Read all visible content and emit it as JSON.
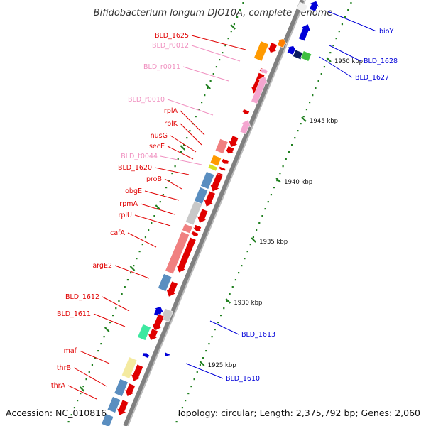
{
  "title": "Bifidobacterium longum DJO10A, complete genome",
  "accession": "Accession: NC_010816",
  "summary": "Topology: circular; Length: 2,375,792 bp; Genes: 2,060",
  "colors": {
    "forward_gene": "#e00000",
    "reverse_gene": "#0000d8",
    "rna_label": "#f090c0",
    "trna": "#ff8000",
    "rrna": "#f4a6d0",
    "cog_blue": "#5a8ec0",
    "cog_grey": "#c8c8c8",
    "cog_salmon": "#f08080",
    "cog_green": "#3de8a0",
    "cog_yellow": "#f4eaa0",
    "cog_orange": "#ff9a00",
    "backbone": "#808080",
    "leader": "#e02020",
    "tick_dot": "#208020"
  },
  "ticks": [
    {
      "label": "1950 kbp"
    },
    {
      "label": "1945 kbp"
    },
    {
      "label": "1940 kbp"
    },
    {
      "label": "1935 kbp"
    },
    {
      "label": "1930 kbp"
    },
    {
      "label": "1925 kbp"
    }
  ],
  "left_labels": [
    {
      "text": "BLD_1625",
      "kind": "gene"
    },
    {
      "text": "BLD_r0012",
      "kind": "rna"
    },
    {
      "text": "BLD_r0011",
      "kind": "rna"
    },
    {
      "text": "BLD_r0010",
      "kind": "rna"
    },
    {
      "text": "rplA",
      "kind": "gene"
    },
    {
      "text": "rplK",
      "kind": "gene"
    },
    {
      "text": "nusG",
      "kind": "gene"
    },
    {
      "text": "secE",
      "kind": "gene"
    },
    {
      "text": "BLD_t0044",
      "kind": "rna"
    },
    {
      "text": "BLD_1620",
      "kind": "gene"
    },
    {
      "text": "proB",
      "kind": "gene"
    },
    {
      "text": "obgE",
      "kind": "gene"
    },
    {
      "text": "rpmA",
      "kind": "gene"
    },
    {
      "text": "rplU",
      "kind": "gene"
    },
    {
      "text": "cafA",
      "kind": "gene"
    },
    {
      "text": "argE2",
      "kind": "gene"
    },
    {
      "text": "BLD_1612",
      "kind": "gene"
    },
    {
      "text": "BLD_1611",
      "kind": "gene"
    },
    {
      "text": "maf",
      "kind": "gene"
    },
    {
      "text": "thrB",
      "kind": "gene"
    },
    {
      "text": "thrA",
      "kind": "gene"
    }
  ],
  "right_labels": [
    {
      "text": "bioY"
    },
    {
      "text": "BLD_1628"
    },
    {
      "text": "BLD_1627"
    },
    {
      "text": "BLD_1613"
    },
    {
      "text": "BLD_1610"
    }
  ]
}
